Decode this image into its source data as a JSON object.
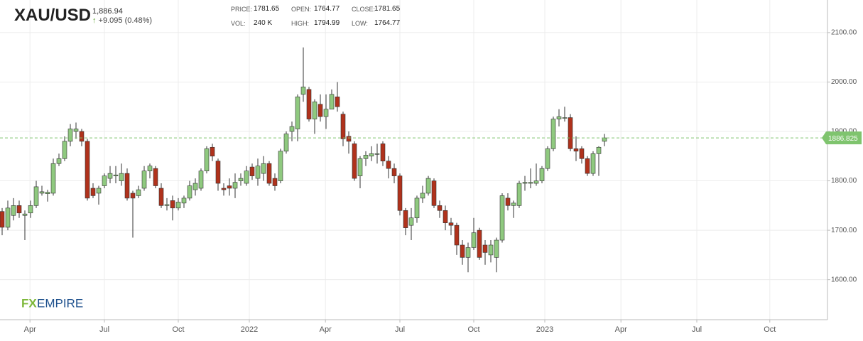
{
  "header": {
    "symbol": "XAU/USD",
    "last": "1,886.94",
    "change": "+9.095 (0.48%)",
    "fields": [
      {
        "label": "PRICE:",
        "value": "1781.65"
      },
      {
        "label": "OPEN:",
        "value": "1764.77"
      },
      {
        "label": "CLOSE:",
        "value": "1781.65"
      },
      {
        "label": "VOL:",
        "value": "240 K"
      },
      {
        "label": "HIGH:",
        "value": "1794.99"
      },
      {
        "label": "LOW:",
        "value": "1764.77"
      }
    ],
    "logo": {
      "fx": "FX",
      "empire": "EMPIRE"
    }
  },
  "chart_data": {
    "type": "candlestick",
    "up_color": "#8fc97f",
    "down_color": "#b0321c",
    "open": [
      1738,
      1706,
      1730,
      1750,
      1730,
      1735,
      1750,
      1775,
      1774,
      1775,
      1835,
      1845,
      1880,
      1900,
      1900,
      1880,
      1785,
      1775,
      1790,
      1805,
      1810,
      1800,
      1815,
      1775,
      1770,
      1785,
      1820,
      1825,
      1785,
      1750,
      1760,
      1745,
      1755,
      1765,
      1782,
      1785,
      1820,
      1868,
      1840,
      1785,
      1790,
      1785,
      1800,
      1795,
      1828,
      1805,
      1815,
      1835,
      1805,
      1800,
      1860,
      1900,
      1905,
      1975,
      1985,
      1925,
      1955,
      1930,
      1945,
      1970,
      1935,
      1890,
      1875,
      1810,
      1845,
      1850,
      1855,
      1875,
      1840,
      1825,
      1810,
      1740,
      1710,
      1725,
      1765,
      1775,
      1800,
      1750,
      1740,
      1715,
      1710,
      1670,
      1645,
      1665,
      1700,
      1670,
      1650,
      1645,
      1680,
      1765,
      1750,
      1750,
      1795,
      1795,
      1795,
      1800,
      1825,
      1865,
      1925,
      1928,
      1928,
      1865,
      1865,
      1845,
      1815,
      1855,
      1880
    ],
    "high": [
      1745,
      1760,
      1765,
      1760,
      1740,
      1760,
      1800,
      1790,
      1782,
      1845,
      1855,
      1890,
      1915,
      1918,
      1905,
      1885,
      1795,
      1790,
      1815,
      1830,
      1830,
      1835,
      1825,
      1780,
      1790,
      1830,
      1835,
      1830,
      1795,
      1765,
      1770,
      1765,
      1770,
      1800,
      1805,
      1825,
      1870,
      1875,
      1845,
      1795,
      1805,
      1815,
      1815,
      1830,
      1835,
      1845,
      1850,
      1840,
      1815,
      1865,
      1900,
      1920,
      1975,
      2070,
      1990,
      1965,
      1975,
      1975,
      1985,
      2000,
      1940,
      1900,
      1880,
      1850,
      1860,
      1870,
      1875,
      1880,
      1850,
      1835,
      1815,
      1745,
      1745,
      1770,
      1790,
      1810,
      1805,
      1760,
      1750,
      1725,
      1715,
      1680,
      1675,
      1725,
      1705,
      1680,
      1680,
      1685,
      1775,
      1775,
      1760,
      1800,
      1810,
      1825,
      1835,
      1830,
      1870,
      1930,
      1945,
      1950,
      1935,
      1890,
      1870,
      1850,
      1860,
      1870,
      1895
    ],
    "low": [
      1690,
      1700,
      1720,
      1725,
      1680,
      1725,
      1745,
      1770,
      1758,
      1770,
      1830,
      1840,
      1870,
      1885,
      1870,
      1760,
      1765,
      1752,
      1785,
      1795,
      1795,
      1790,
      1760,
      1685,
      1765,
      1780,
      1805,
      1785,
      1745,
      1740,
      1720,
      1740,
      1745,
      1760,
      1770,
      1780,
      1815,
      1840,
      1780,
      1770,
      1770,
      1765,
      1790,
      1790,
      1802,
      1790,
      1800,
      1790,
      1780,
      1795,
      1855,
      1880,
      1880,
      1960,
      1920,
      1895,
      1920,
      1905,
      1945,
      1940,
      1870,
      1855,
      1800,
      1785,
      1830,
      1840,
      1835,
      1830,
      1805,
      1795,
      1730,
      1690,
      1680,
      1715,
      1755,
      1770,
      1745,
      1725,
      1700,
      1690,
      1650,
      1630,
      1615,
      1660,
      1640,
      1630,
      1635,
      1615,
      1675,
      1740,
      1725,
      1745,
      1780,
      1785,
      1790,
      1795,
      1820,
      1860,
      1910,
      1920,
      1860,
      1840,
      1835,
      1810,
      1810,
      1810,
      1870
    ],
    "close": [
      1706,
      1745,
      1750,
      1735,
      1733,
      1750,
      1788,
      1778,
      1777,
      1835,
      1845,
      1880,
      1905,
      1905,
      1880,
      1765,
      1770,
      1785,
      1810,
      1815,
      1812,
      1815,
      1765,
      1765,
      1782,
      1820,
      1830,
      1790,
      1750,
      1752,
      1745,
      1757,
      1765,
      1790,
      1795,
      1820,
      1865,
      1850,
      1795,
      1782,
      1785,
      1797,
      1805,
      1820,
      1810,
      1830,
      1835,
      1795,
      1790,
      1860,
      1895,
      1910,
      1970,
      1990,
      1925,
      1960,
      1930,
      1945,
      1975,
      1950,
      1885,
      1880,
      1805,
      1845,
      1852,
      1855,
      1855,
      1840,
      1825,
      1810,
      1740,
      1705,
      1725,
      1765,
      1775,
      1805,
      1750,
      1740,
      1715,
      1710,
      1670,
      1645,
      1665,
      1695,
      1645,
      1655,
      1670,
      1680,
      1770,
      1750,
      1755,
      1795,
      1797,
      1797,
      1800,
      1825,
      1865,
      1925,
      1930,
      1928,
      1865,
      1860,
      1845,
      1815,
      1855,
      1868,
      1887
    ],
    "xlim": [
      -0.375,
      145.25
    ],
    "xticks": [
      {
        "value": 4.9,
        "label": "Apr"
      },
      {
        "value": 18,
        "label": "Jul"
      },
      {
        "value": 31,
        "label": "Oct"
      },
      {
        "value": 43.5,
        "label": "2022"
      },
      {
        "value": 56.9,
        "label": "Apr"
      },
      {
        "value": 70,
        "label": "Jul"
      },
      {
        "value": 83,
        "label": "Oct"
      },
      {
        "value": 95.5,
        "label": "2023"
      },
      {
        "value": 108.9,
        "label": "Apr"
      },
      {
        "value": 122.25,
        "label": "Jul"
      },
      {
        "value": 135.1,
        "label": "Oct"
      }
    ],
    "ylim": [
      1519,
      2166
    ],
    "yticks": [
      {
        "value": 1600,
        "label": "1600.00"
      },
      {
        "value": 1700,
        "label": "1700.00"
      },
      {
        "value": 1800,
        "label": "1800.00"
      },
      {
        "value": 1900,
        "label": "1900.00"
      },
      {
        "value": 2000,
        "label": "2000.00"
      },
      {
        "value": 2100,
        "label": "2100.00"
      }
    ],
    "grid": true,
    "current": {
      "value": 1886.825,
      "label": "1886.825",
      "color": "#7fc46e"
    }
  }
}
